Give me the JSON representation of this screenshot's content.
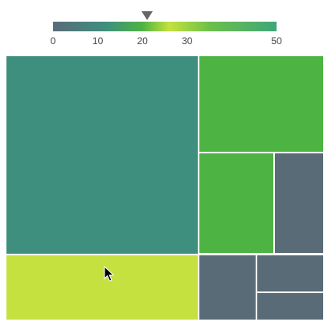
{
  "chart_data": {
    "type": "treemap",
    "color_scale": {
      "min": 0,
      "max": 50,
      "ticks": [
        "0",
        "10",
        "20",
        "30",
        "50"
      ],
      "tick_values": [
        0,
        10,
        20,
        30,
        50
      ],
      "marker_value": 21,
      "stops": [
        {
          "value": 0,
          "color": "#5a6b78"
        },
        {
          "value": 12,
          "color": "#3f8f7e"
        },
        {
          "value": 20,
          "color": "#4db343"
        },
        {
          "value": 26,
          "color": "#c5e13f"
        },
        {
          "value": 35,
          "color": "#6cc04a"
        },
        {
          "value": 50,
          "color": "#3fa57a"
        }
      ]
    },
    "nodes": [
      {
        "id": "n1",
        "size": 60,
        "color": "#3f8f7e"
      },
      {
        "id": "n2",
        "size": 20,
        "color": "#c5e13f"
      },
      {
        "id": "n3",
        "size": 19,
        "color": "#4db343"
      },
      {
        "id": "n4",
        "size": 12,
        "color": "#4db343"
      },
      {
        "id": "n5",
        "size": 8,
        "color": "#5a6b78"
      },
      {
        "id": "n6",
        "size": 6,
        "color": "#5a6b78"
      },
      {
        "id": "n7",
        "size": 4,
        "color": "#5a6b78"
      },
      {
        "id": "n8",
        "size": 3,
        "color": "#5a6b78"
      }
    ]
  }
}
